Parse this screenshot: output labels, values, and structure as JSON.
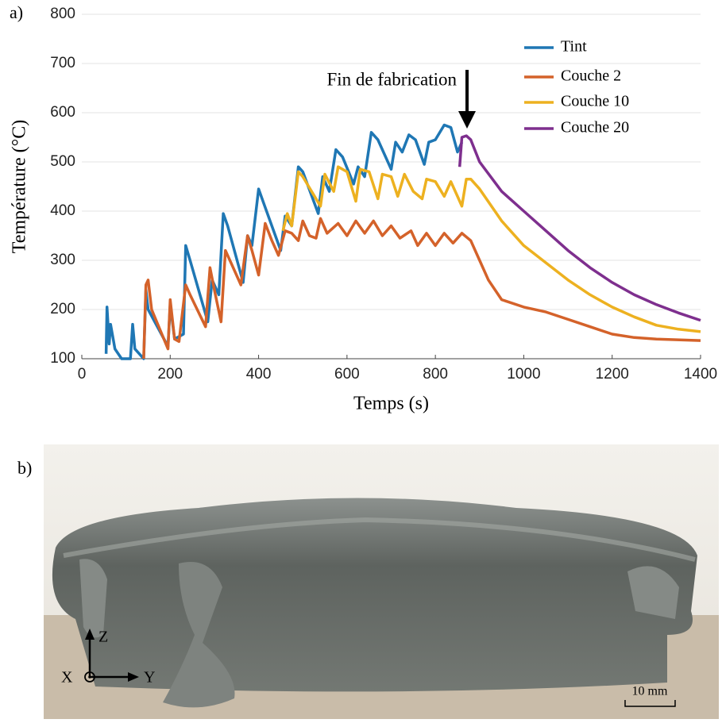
{
  "panel_labels": [
    "a)",
    "b)"
  ],
  "chart_data": {
    "type": "line",
    "xlabel": "Temps (s)",
    "ylabel": "Température (°C)",
    "annotation": "Fin de fabrication",
    "xlim": [
      0,
      1400
    ],
    "xticks": [
      0,
      200,
      400,
      600,
      800,
      1000,
      1200,
      1400
    ],
    "ylim": [
      100,
      800
    ],
    "yticks": [
      100,
      200,
      300,
      400,
      500,
      600,
      700,
      800
    ],
    "grid": true,
    "legend": "upper right",
    "series": [
      {
        "name": "Tint",
        "color": "#1f77b4",
        "x": [
          55,
          57,
          62,
          65,
          75,
          90,
          110,
          115,
          120,
          140,
          145,
          150,
          195,
          200,
          210,
          230,
          235,
          245,
          285,
          295,
          310,
          320,
          330,
          365,
          375,
          385,
          400,
          410,
          450,
          460,
          475,
          490,
          500,
          535,
          545,
          560,
          575,
          590,
          615,
          625,
          640,
          655,
          670,
          700,
          710,
          725,
          740,
          755,
          775,
          785,
          800,
          820,
          835,
          850,
          860
        ],
        "values": [
          110,
          205,
          130,
          170,
          120,
          100,
          100,
          170,
          120,
          100,
          240,
          200,
          125,
          210,
          140,
          150,
          330,
          300,
          175,
          260,
          230,
          395,
          370,
          255,
          350,
          330,
          445,
          420,
          320,
          390,
          370,
          490,
          480,
          395,
          470,
          440,
          525,
          510,
          455,
          490,
          470,
          560,
          545,
          485,
          540,
          520,
          555,
          545,
          495,
          540,
          545,
          575,
          570,
          520,
          540
        ]
      },
      {
        "name": "Couche 2",
        "color": "#d4622a",
        "x": [
          140,
          145,
          150,
          158,
          195,
          200,
          210,
          220,
          235,
          245,
          280,
          290,
          300,
          315,
          325,
          340,
          360,
          375,
          385,
          400,
          415,
          430,
          445,
          460,
          475,
          490,
          500,
          515,
          530,
          540,
          555,
          580,
          600,
          620,
          640,
          660,
          680,
          700,
          720,
          745,
          760,
          780,
          800,
          820,
          840,
          860,
          880,
          900,
          920,
          950,
          1000,
          1050,
          1100,
          1150,
          1200,
          1250,
          1300,
          1400
        ],
        "values": [
          100,
          250,
          260,
          200,
          120,
          220,
          140,
          135,
          250,
          230,
          165,
          285,
          240,
          175,
          320,
          290,
          250,
          350,
          320,
          270,
          375,
          340,
          310,
          360,
          355,
          340,
          380,
          350,
          345,
          385,
          355,
          375,
          350,
          380,
          355,
          380,
          350,
          370,
          345,
          360,
          330,
          355,
          330,
          355,
          335,
          355,
          340,
          300,
          260,
          220,
          205,
          195,
          180,
          165,
          150,
          143,
          140,
          137
        ]
      },
      {
        "name": "Couche 10",
        "color": "#edb120",
        "x": [
          455,
          465,
          475,
          490,
          500,
          540,
          550,
          570,
          580,
          600,
          620,
          630,
          650,
          670,
          680,
          700,
          715,
          730,
          750,
          770,
          780,
          800,
          820,
          835,
          850,
          860,
          870,
          880,
          900,
          950,
          1000,
          1050,
          1100,
          1150,
          1200,
          1250,
          1300,
          1350,
          1400
        ],
        "values": [
          360,
          395,
          370,
          480,
          470,
          410,
          475,
          440,
          490,
          480,
          420,
          485,
          480,
          425,
          475,
          470,
          430,
          475,
          440,
          425,
          465,
          460,
          430,
          460,
          430,
          410,
          465,
          465,
          445,
          380,
          330,
          295,
          260,
          230,
          205,
          185,
          168,
          160,
          155
        ]
      },
      {
        "name": "Couche 20",
        "color": "#7e2f8e",
        "x": [
          855,
          860,
          870,
          880,
          900,
          950,
          1000,
          1050,
          1100,
          1150,
          1200,
          1250,
          1300,
          1350,
          1400
        ],
        "values": [
          490,
          550,
          553,
          545,
          500,
          440,
          400,
          360,
          320,
          285,
          255,
          230,
          210,
          193,
          178
        ]
      }
    ]
  },
  "photo": {
    "axis_labels": [
      "Z",
      "X",
      "Y"
    ],
    "scale_bar": "10 mm"
  }
}
